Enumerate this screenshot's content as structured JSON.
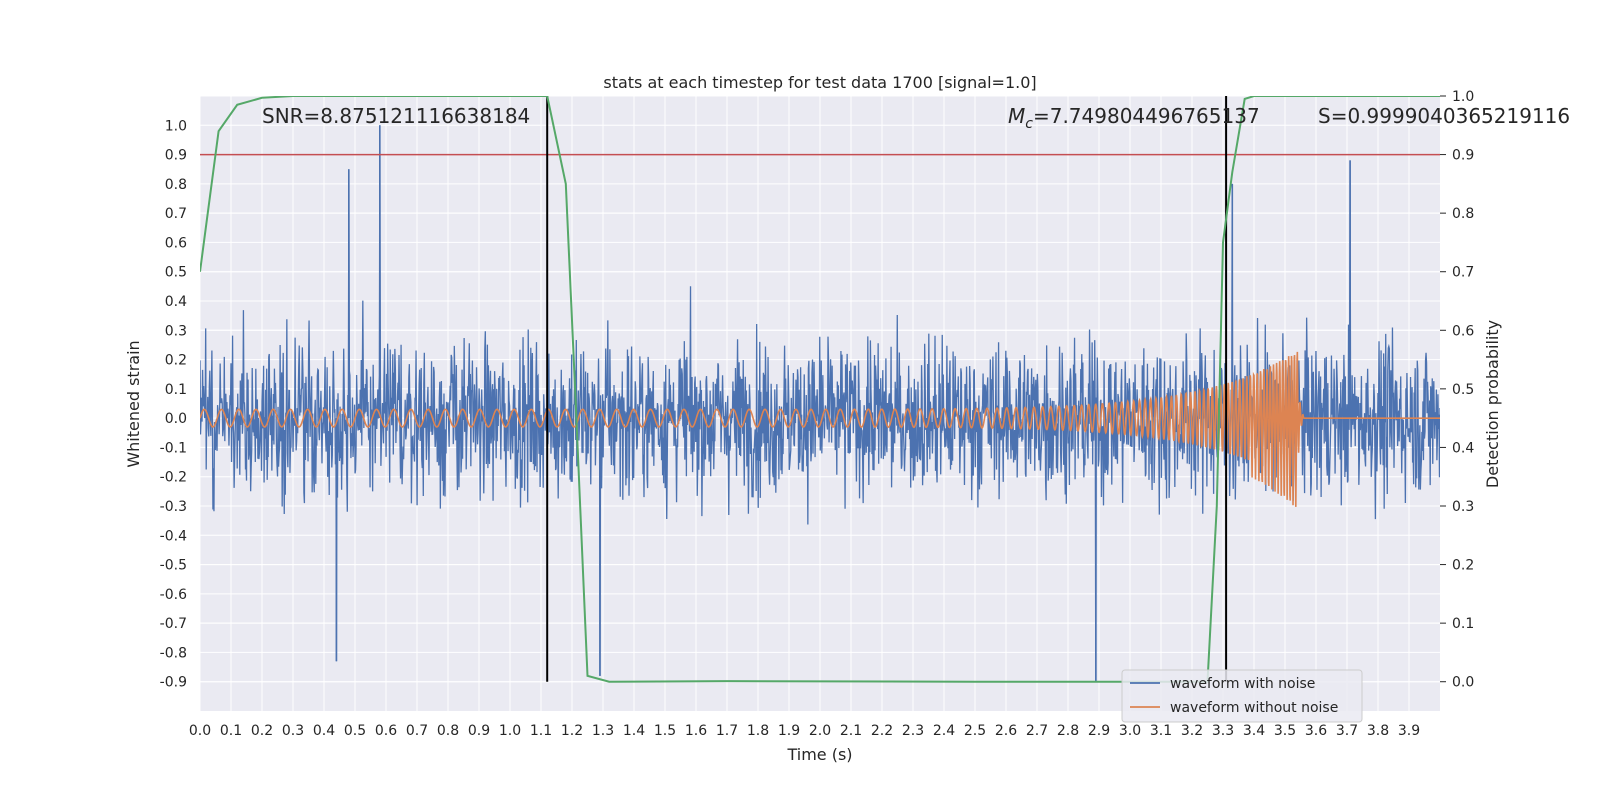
{
  "chart_data": {
    "type": "line",
    "title": "stats at each timestep for test data 1700 [signal=1.0]",
    "xlabel": "Time (s)",
    "ylabel": "Whitened strain",
    "y2label": "Detection probability",
    "xlim": [
      0.0,
      4.0
    ],
    "ylim": [
      -1.0,
      1.1
    ],
    "y2lim": [
      -0.05,
      1.0
    ],
    "xticks": [
      "0.0",
      "0.1",
      "0.2",
      "0.3",
      "0.4",
      "0.5",
      "0.6",
      "0.7",
      "0.8",
      "0.9",
      "1.0",
      "1.1",
      "1.2",
      "1.3",
      "1.4",
      "1.5",
      "1.6",
      "1.7",
      "1.8",
      "1.9",
      "2.0",
      "2.1",
      "2.2",
      "2.3",
      "2.4",
      "2.5",
      "2.6",
      "2.7",
      "2.8",
      "2.9",
      "3.0",
      "3.1",
      "3.2",
      "3.3",
      "3.4",
      "3.5",
      "3.6",
      "3.7",
      "3.8",
      "3.9"
    ],
    "yticks": [
      "-0.9",
      "-0.8",
      "-0.7",
      "-0.6",
      "-0.5",
      "-0.4",
      "-0.3",
      "-0.2",
      "-0.1",
      "0.0",
      "0.1",
      "0.2",
      "0.3",
      "0.4",
      "0.5",
      "0.6",
      "0.7",
      "0.8",
      "0.9",
      "1.0"
    ],
    "y2ticks": [
      "0.0",
      "0.1",
      "0.2",
      "0.3",
      "0.4",
      "0.5",
      "0.6",
      "0.7",
      "0.8",
      "0.9",
      "1.0"
    ],
    "annotations": {
      "snr": "SNR=8.875121116638184",
      "mc_symbol": "M",
      "mc_sub": "c",
      "mc_value": "=7.749804496765137",
      "s": "S=0.9999040365219116"
    },
    "threshold_line": {
      "axis": "y2",
      "value": 0.9,
      "color": "#c44e52"
    },
    "vertical_lines": [
      1.12,
      3.31
    ],
    "vertical_line_range_y2": [
      0.0,
      1.0
    ],
    "series": [
      {
        "name": "waveform with noise",
        "color": "#4c72b0",
        "axis": "y",
        "kind": "noise",
        "typical_amplitude": 0.35,
        "peaks": [
          [
            0.58,
            1.0
          ],
          [
            0.48,
            0.85
          ],
          [
            3.71,
            0.88
          ],
          [
            2.89,
            -0.9
          ],
          [
            1.29,
            -0.88
          ],
          [
            0.44,
            -0.83
          ],
          [
            3.33,
            0.8
          ]
        ]
      },
      {
        "name": "waveform without noise",
        "color": "#dd8452",
        "axis": "y",
        "kind": "chirp",
        "t_merger": 3.54,
        "t_end": 3.56,
        "amp_start": 0.03,
        "amp_peak": 0.23,
        "amp_min_peak": -0.31,
        "f_start": 18,
        "f_end": 110
      },
      {
        "name": "detection probability",
        "color": "#55a868",
        "axis": "y2",
        "x": [
          0.0,
          0.06,
          0.12,
          0.2,
          0.3,
          1.12,
          1.18,
          1.21,
          1.25,
          1.32,
          1.7,
          2.5,
          3.25,
          3.28,
          3.3,
          3.33,
          3.37,
          3.4,
          3.7,
          4.0
        ],
        "y": [
          0.7,
          0.94,
          0.985,
          0.997,
          1.0,
          1.0,
          0.85,
          0.5,
          0.01,
          0.0,
          0.001,
          0.0,
          0.0,
          0.3,
          0.75,
          0.87,
          0.995,
          1.0,
          1.0,
          1.0
        ]
      }
    ],
    "legend": {
      "location": "lower-right",
      "entries": [
        {
          "label": "waveform with noise",
          "color": "#4c72b0"
        },
        {
          "label": "waveform without noise",
          "color": "#dd8452"
        }
      ]
    }
  }
}
